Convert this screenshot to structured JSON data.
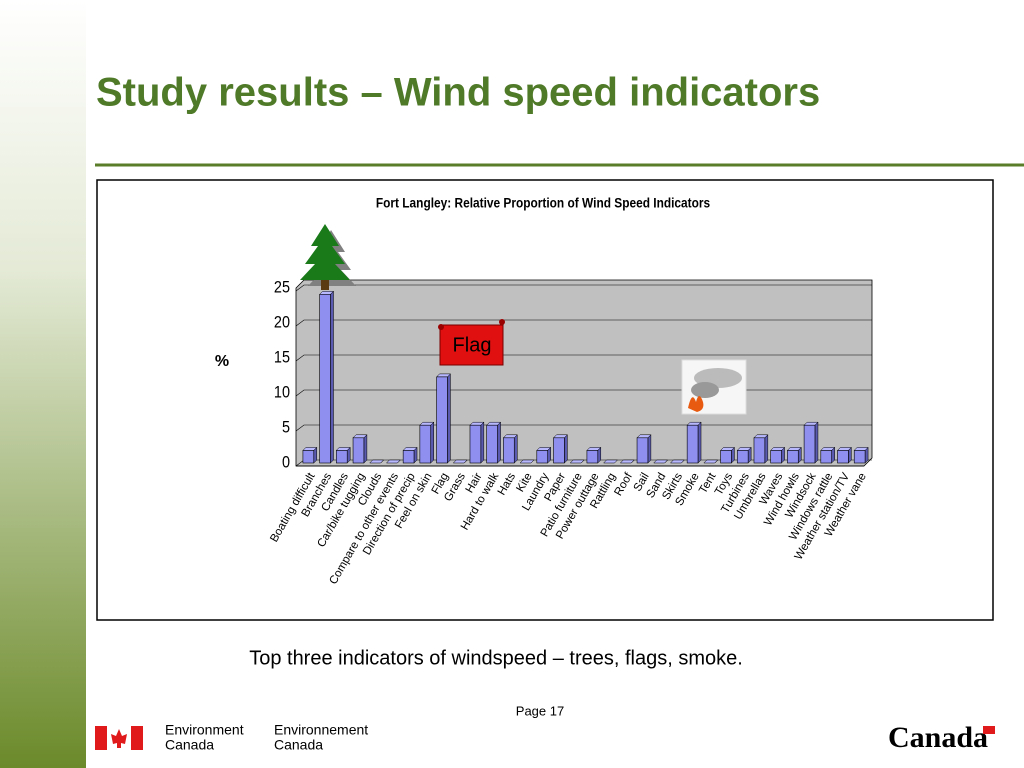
{
  "slide": {
    "title": "Study results – Wind speed indicators",
    "caption": "Top three indicators of windspeed – trees, flags, smoke.",
    "page": "Page 17",
    "footer_en": [
      "Environment",
      "Canada"
    ],
    "footer_fr": [
      "Environnement",
      "Canada"
    ],
    "wordmark": "Canada"
  },
  "chart_data": {
    "type": "bar",
    "title": "Fort Langley: Relative Proportion of Wind Speed Indicators",
    "y_label": "%",
    "annotation": "Flag",
    "categories": [
      "Boating difficult",
      "Branches",
      "Candles",
      "Car/bike tugging",
      "Clouds",
      "Compare to other events",
      "Direction of precip",
      "Feel on skin",
      "Flag",
      "Grass",
      "Hair",
      "Hard to walk",
      "Hats",
      "Kite",
      "Laundry",
      "Paper",
      "Patio furniture",
      "Power  outtage",
      "Rattling",
      "Roof",
      "Sail",
      "Sand",
      "Skirts",
      "Smoke",
      "Tent",
      "Toys",
      "Turbines",
      "Umbrellas",
      "Waves",
      "Wind howls",
      "Windsock",
      "Windows rattle",
      "Weather station/TV",
      "Weather vane"
    ],
    "values": [
      1.8,
      24.1,
      1.8,
      3.6,
      0,
      0,
      1.8,
      5.4,
      12.3,
      0,
      5.4,
      5.4,
      3.6,
      0,
      1.8,
      3.6,
      0,
      1.8,
      0,
      0,
      3.6,
      0,
      0,
      5.4,
      0,
      1.8,
      1.8,
      3.6,
      1.8,
      1.8,
      5.4,
      1.8,
      1.8,
      1.8
    ],
    "color": "#8f8fef",
    "ylim": [
      0,
      25
    ],
    "yticks": [
      0,
      5,
      10,
      15,
      20,
      25
    ],
    "grid": true
  }
}
